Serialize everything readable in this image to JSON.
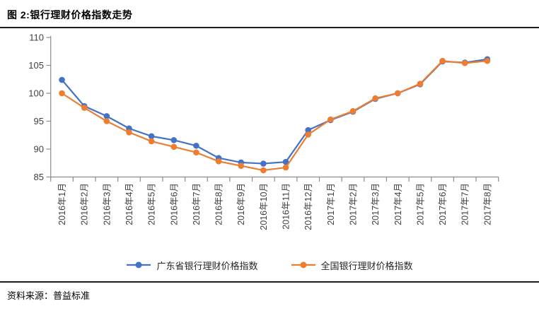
{
  "title": "图 2:银行理财价格指数走势",
  "source": "资料来源：普益标准",
  "legend": {
    "series1_label": "广东省银行理财价格指数",
    "series2_label": "全国银行理财价格指数"
  },
  "colors": {
    "series1": "#4472C4",
    "series2": "#ED7D31",
    "axis_line": "#8C8C8C",
    "tick_label": "#404040",
    "rule_line": "#1a1a1a"
  },
  "chart_data": {
    "type": "line",
    "title": "图 2:银行理财价格指数走势",
    "xlabel": "",
    "ylabel": "",
    "ylim": [
      85,
      110
    ],
    "yticks": [
      85,
      90,
      95,
      100,
      105,
      110
    ],
    "grid": false,
    "legend_position": "bottom",
    "categories": [
      "2016年1月",
      "2016年2月",
      "2016年3月",
      "2016年4月",
      "2016年5月",
      "2016年6月",
      "2016年7月",
      "2016年8月",
      "2016年9月",
      "2016年10月",
      "2016年11月",
      "2016年12月",
      "2017年1月",
      "2017年2月",
      "2017年3月",
      "2017年4月",
      "2017年5月",
      "2017年6月",
      "2017年7月",
      "2017年8月"
    ],
    "series": [
      {
        "name": "广东省银行理财价格指数",
        "color": "#4472C4",
        "values": [
          102.4,
          97.7,
          95.9,
          93.7,
          92.3,
          91.6,
          90.6,
          88.4,
          87.6,
          87.4,
          87.7,
          93.4,
          95.2,
          96.7,
          99.0,
          100.0,
          101.6,
          105.7,
          105.5,
          106.1
        ]
      },
      {
        "name": "全国银行理财价格指数",
        "color": "#ED7D31",
        "values": [
          100.0,
          97.4,
          95.0,
          93.0,
          91.4,
          90.4,
          89.4,
          87.8,
          87.0,
          86.2,
          86.7,
          92.6,
          95.3,
          96.8,
          99.1,
          100.0,
          101.7,
          105.8,
          105.4,
          105.8
        ]
      }
    ]
  }
}
